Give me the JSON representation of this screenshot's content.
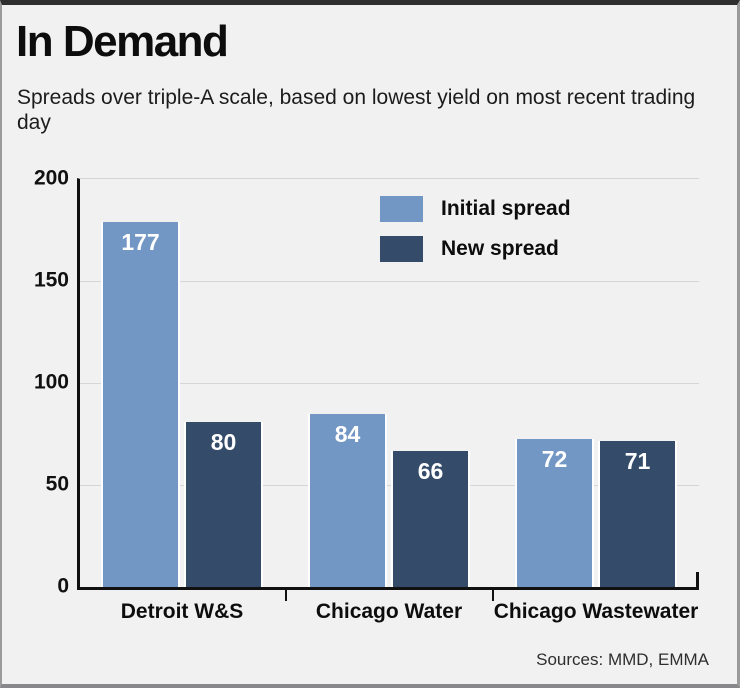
{
  "header": {
    "title": "In Demand",
    "subtitle": "Spreads over triple-A scale, based on lowest yield on most recent trading day"
  },
  "source": "Sources: MMD, EMMA",
  "colors": {
    "initial_spread": "#7297c4",
    "new_spread": "#344b69",
    "background": "#f1f1f2",
    "grid": "#d6d6d9",
    "axis": "#111111",
    "value_label": "#ffffff"
  },
  "chart_data": {
    "type": "bar",
    "categories": [
      "Detroit W&S",
      "Chicago Water",
      "Chicago Wastewater"
    ],
    "series": [
      {
        "name": "Initial spread",
        "values": [
          177,
          84,
          72
        ]
      },
      {
        "name": "New spread",
        "values": [
          80,
          66,
          71
        ]
      }
    ],
    "title": "In Demand",
    "xlabel": "",
    "ylabel": "",
    "ylim": [
      0,
      200
    ],
    "yticks": [
      0,
      50,
      100,
      150,
      200
    ],
    "grid": true,
    "legend_position": "top-center",
    "value_labels": "inside-top-white"
  }
}
